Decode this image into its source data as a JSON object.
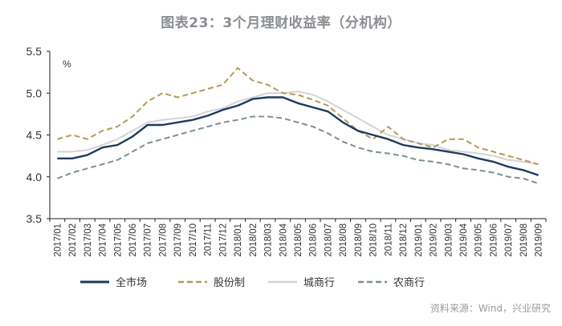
{
  "title": "图表23：3个月理财收益率（分机构）",
  "source_note": "资料来源：Wind，兴业研究",
  "colors": {
    "全市场": "#1f3a5f",
    "股份制": "#b59a5a",
    "城商行": "#d4d4d4",
    "农商行": "#7c9094",
    "axis": "#222222"
  },
  "chart_data": {
    "type": "line",
    "title": "图表23：3个月理财收益率（分机构）",
    "ylabel": "%",
    "xlabel": "",
    "ylim": [
      3.5,
      5.5
    ],
    "yticks": [
      "3.5",
      "4.0",
      "4.5",
      "5.0",
      "5.5"
    ],
    "grid": false,
    "legend_position": "bottom",
    "categories": [
      "2017/01",
      "2017/02",
      "2017/03",
      "2017/04",
      "2017/05",
      "2017/06",
      "2017/07",
      "2017/08",
      "2017/09",
      "2017/10",
      "2017/11",
      "2017/12",
      "2018/01",
      "2018/02",
      "2018/03",
      "2018/04",
      "2018/05",
      "2018/06",
      "2018/07",
      "2018/08",
      "2018/09",
      "2018/10",
      "2018/11",
      "2018/12",
      "2019/01",
      "2019/02",
      "2019/03",
      "2019/04",
      "2019/05",
      "2019/06",
      "2019/07",
      "2019/08",
      "2019/09"
    ],
    "series": [
      {
        "name": "全市场",
        "style": "solid",
        "values": [
          4.22,
          4.22,
          4.26,
          4.35,
          4.38,
          4.48,
          4.62,
          4.62,
          4.65,
          4.68,
          4.73,
          4.8,
          4.85,
          4.93,
          4.95,
          4.95,
          4.88,
          4.83,
          4.78,
          4.65,
          4.55,
          4.5,
          4.45,
          4.38,
          4.35,
          4.33,
          4.3,
          4.27,
          4.22,
          4.18,
          4.12,
          4.08,
          4.02
        ]
      },
      {
        "name": "股份制",
        "style": "dashed",
        "values": [
          4.45,
          4.5,
          4.45,
          4.55,
          4.6,
          4.72,
          4.9,
          5.0,
          4.95,
          5.0,
          5.05,
          5.1,
          5.3,
          5.15,
          5.1,
          5.0,
          4.98,
          4.92,
          4.85,
          4.7,
          4.55,
          4.45,
          4.6,
          4.45,
          4.4,
          4.35,
          4.45,
          4.45,
          4.35,
          4.3,
          4.25,
          4.2,
          4.15
        ]
      },
      {
        "name": "城商行",
        "style": "solid",
        "values": [
          4.3,
          4.3,
          4.32,
          4.38,
          4.45,
          4.55,
          4.65,
          4.68,
          4.7,
          4.72,
          4.78,
          4.82,
          4.9,
          4.95,
          5.0,
          5.0,
          5.02,
          4.98,
          4.9,
          4.8,
          4.7,
          4.6,
          4.5,
          4.45,
          4.4,
          4.38,
          4.32,
          4.3,
          4.28,
          4.25,
          4.2,
          4.18,
          4.15
        ]
      },
      {
        "name": "农商行",
        "style": "dashed",
        "values": [
          3.98,
          4.05,
          4.1,
          4.15,
          4.2,
          4.3,
          4.4,
          4.45,
          4.5,
          4.55,
          4.6,
          4.65,
          4.68,
          4.72,
          4.72,
          4.7,
          4.65,
          4.6,
          4.52,
          4.42,
          4.35,
          4.3,
          4.28,
          4.25,
          4.2,
          4.18,
          4.15,
          4.1,
          4.08,
          4.05,
          4.0,
          3.98,
          3.92
        ]
      }
    ]
  }
}
